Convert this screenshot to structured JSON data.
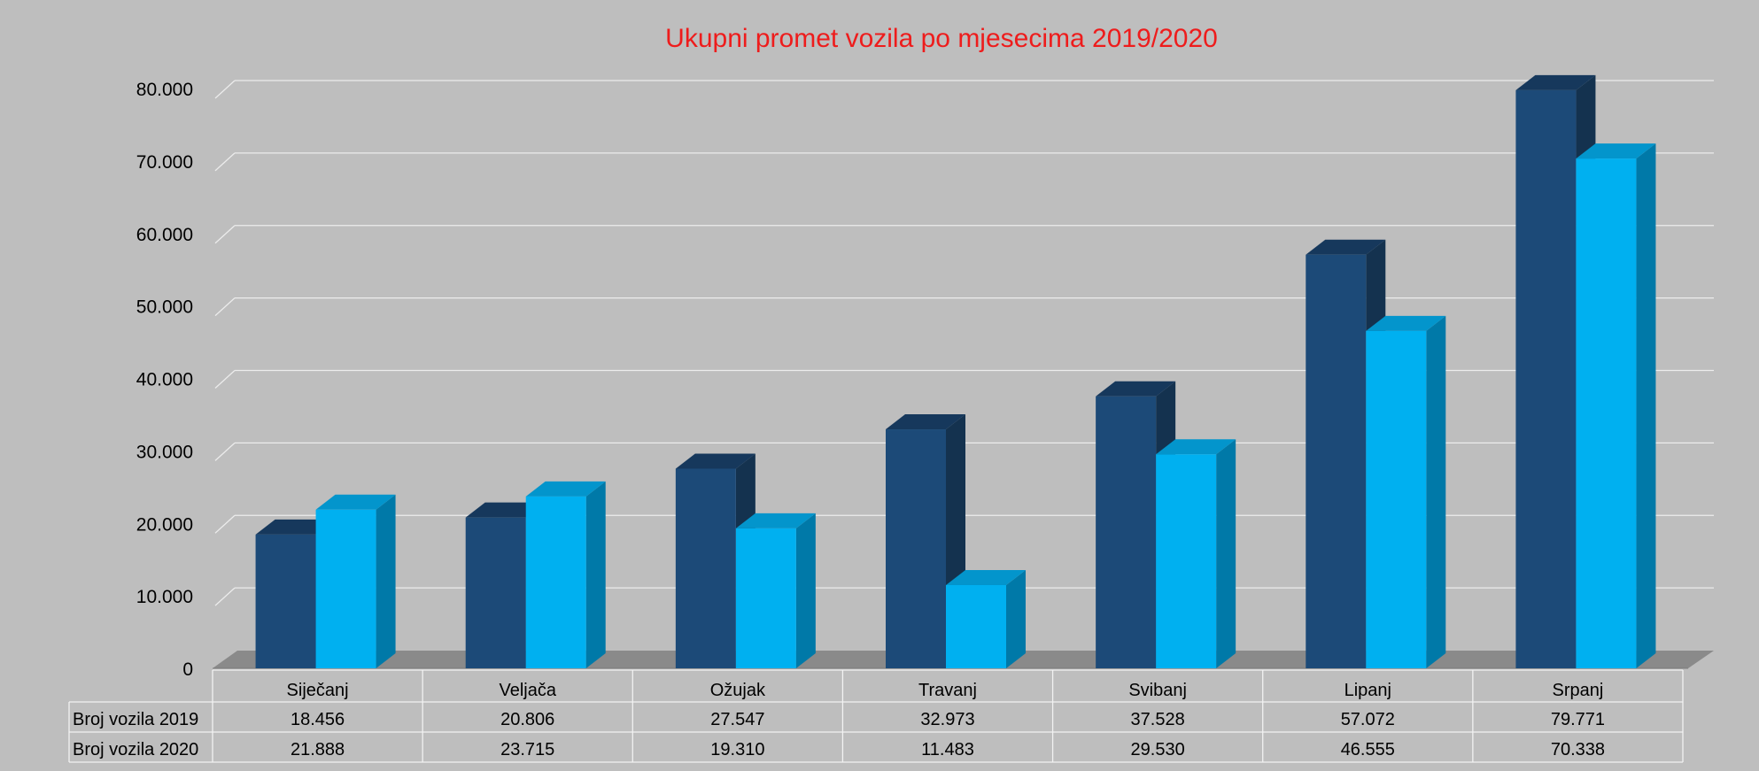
{
  "chart_data": {
    "type": "bar",
    "title": "Ukupni promet vozila po mjesecima 2019/2020",
    "categories": [
      "Siječanj",
      "Veljača",
      "Ožujak",
      "Travanj",
      "Svibanj",
      "Lipanj",
      "Srpanj"
    ],
    "series": [
      {
        "name": "Broj vozila 2019",
        "values": [
          18456,
          20806,
          27547,
          32973,
          37528,
          57072,
          79771
        ],
        "labels": [
          "18.456",
          "20.806",
          "27.547",
          "32.973",
          "37.528",
          "57.072",
          "79.771"
        ]
      },
      {
        "name": "Broj vozila 2020",
        "values": [
          21888,
          23715,
          19310,
          11483,
          29530,
          46555,
          70338
        ],
        "labels": [
          "21.888",
          "23.715",
          "19.310",
          "11.483",
          "29.530",
          "46.555",
          "70.338"
        ]
      }
    ],
    "yticks": [
      "0",
      "10.000",
      "20.000",
      "30.000",
      "40.000",
      "50.000",
      "60.000",
      "70.000",
      "80.000"
    ],
    "ylim": [
      0,
      80000
    ],
    "grid": true,
    "legend": "data-table-bottom",
    "colors": {
      "title": "#ee1c1c",
      "series2019_front": "#1c4a78",
      "series2019_top": "#16385c",
      "series2019_side": "#14324f",
      "series2020_front": "#00b0f0",
      "series2020_top": "#0395cc",
      "series2020_side": "#0079a8",
      "gridline": "#ececec",
      "background": "#bebebe",
      "table_border": "#f2f2f2"
    }
  }
}
